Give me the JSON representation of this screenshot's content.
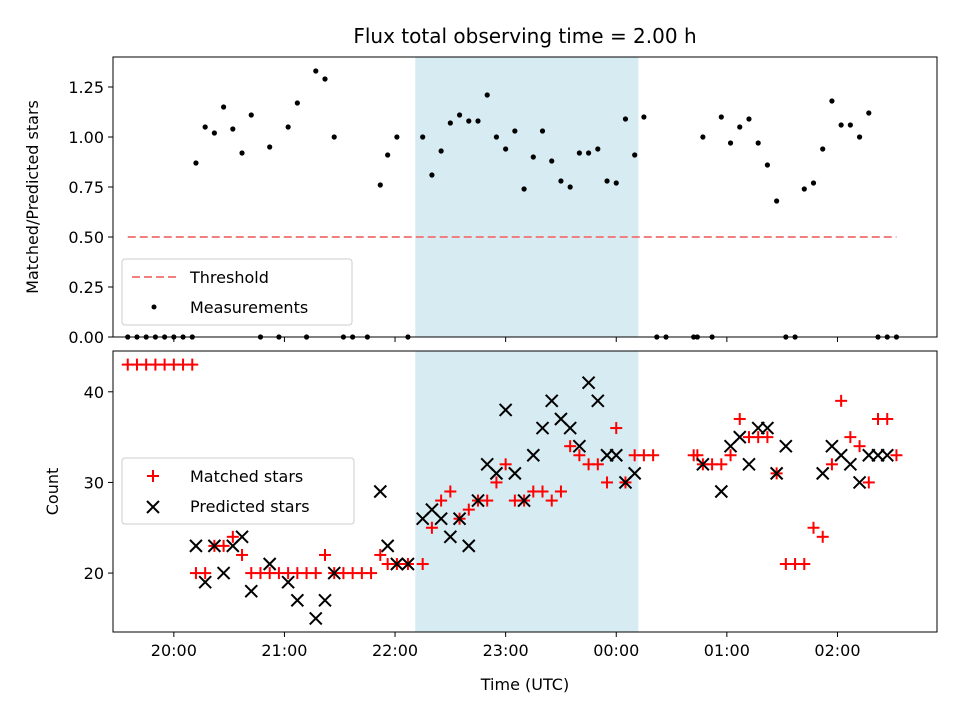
{
  "chart_data": [
    {
      "type": "scatter",
      "title": "Flux total observing time = 2.00 h",
      "xlabel": "",
      "ylabel": "Matched/Predicted stars",
      "xlim": [
        "19:27",
        "02:54"
      ],
      "ylim": [
        0,
        1.4
      ],
      "yticks": [
        "0.00",
        "0.25",
        "0.50",
        "0.75",
        "1.00",
        "1.25"
      ],
      "shaded_region": [
        "22:11",
        "00:12"
      ],
      "shade_color": "#add8e6",
      "legend": {
        "position": "lower-left",
        "entries": [
          "Threshold",
          "Measurements"
        ]
      },
      "threshold": {
        "name": "Threshold",
        "value": 0.5,
        "x_range": [
          "19:35",
          "02:32"
        ],
        "color": "#f08080",
        "style": "dashed"
      },
      "measurements": {
        "name": "Measurements",
        "color": "#000000",
        "x": [
          "19:35",
          "19:40",
          "19:45",
          "19:50",
          "19:55",
          "20:00",
          "20:05",
          "20:10",
          "20:12",
          "20:17",
          "20:22",
          "20:27",
          "20:32",
          "20:37",
          "20:42",
          "20:47",
          "20:52",
          "20:57",
          "21:02",
          "21:07",
          "21:12",
          "21:17",
          "21:22",
          "21:27",
          "21:32",
          "21:37",
          "21:45",
          "21:52",
          "21:56",
          "22:01",
          "22:07",
          "22:15",
          "22:20",
          "22:25",
          "22:30",
          "22:35",
          "22:40",
          "22:45",
          "22:50",
          "22:55",
          "23:00",
          "23:05",
          "23:10",
          "23:15",
          "23:20",
          "23:25",
          "23:30",
          "23:35",
          "23:40",
          "23:45",
          "23:50",
          "23:55",
          "00:00",
          "00:05",
          "00:10",
          "00:15",
          "00:22",
          "00:27",
          "00:42",
          "00:44",
          "00:47",
          "00:52",
          "00:57",
          "01:02",
          "01:07",
          "01:12",
          "01:17",
          "01:22",
          "01:27",
          "01:32",
          "01:37",
          "01:42",
          "01:47",
          "01:52",
          "01:57",
          "02:02",
          "02:07",
          "02:12",
          "02:17",
          "02:22",
          "02:27",
          "02:32"
        ],
        "y": [
          0,
          0,
          0,
          0,
          0,
          0,
          0,
          0,
          0.87,
          1.05,
          1.02,
          1.15,
          1.04,
          0.92,
          1.11,
          0,
          0.95,
          0,
          1.05,
          1.17,
          0,
          1.33,
          1.29,
          1.0,
          0,
          0,
          0,
          0.76,
          0.91,
          1.0,
          0,
          1.0,
          0.81,
          0.93,
          1.07,
          1.11,
          1.08,
          1.08,
          1.21,
          1.0,
          0.94,
          1.03,
          0.74,
          0.9,
          1.03,
          0.88,
          0.78,
          0.75,
          0.92,
          0.92,
          0.94,
          0.78,
          0.77,
          1.09,
          0.91,
          1.1,
          0,
          0,
          0,
          0,
          1.0,
          0,
          1.1,
          0.97,
          1.05,
          1.09,
          0.97,
          0.86,
          0.68,
          0,
          0,
          0.74,
          0.77,
          0.94,
          1.18,
          1.06,
          1.06,
          1.0,
          1.12,
          0,
          0,
          0
        ]
      }
    },
    {
      "type": "scatter",
      "title": "",
      "xlabel": "Time (UTC)",
      "ylabel": "Count",
      "xlim": [
        "19:27",
        "02:54"
      ],
      "ylim": [
        13.5,
        44.5
      ],
      "yticks": [
        "20",
        "30",
        "40"
      ],
      "xticks": [
        "20:00",
        "21:00",
        "22:00",
        "23:00",
        "00:00",
        "01:00",
        "02:00"
      ],
      "shaded_region": [
        "22:11",
        "00:12"
      ],
      "shade_color": "#add8e6",
      "legend": {
        "position": "center-left",
        "entries": [
          "Matched stars",
          "Predicted stars"
        ]
      },
      "series": [
        {
          "name": "Matched stars",
          "marker": "+",
          "color": "#ff0000",
          "x": [
            "19:35",
            "19:40",
            "19:45",
            "19:50",
            "19:55",
            "20:00",
            "20:05",
            "20:10",
            "20:12",
            "20:17",
            "20:22",
            "20:27",
            "20:32",
            "20:37",
            "20:42",
            "20:47",
            "20:52",
            "20:57",
            "21:02",
            "21:07",
            "21:12",
            "21:17",
            "21:22",
            "21:27",
            "21:32",
            "21:37",
            "21:42",
            "21:47",
            "21:52",
            "21:56",
            "22:01",
            "22:07",
            "22:15",
            "22:20",
            "22:25",
            "22:30",
            "22:35",
            "22:40",
            "22:45",
            "22:50",
            "22:55",
            "23:00",
            "23:05",
            "23:10",
            "23:15",
            "23:20",
            "23:25",
            "23:30",
            "23:35",
            "23:40",
            "23:45",
            "23:50",
            "23:55",
            "00:00",
            "00:05",
            "00:10",
            "00:15",
            "00:20",
            "00:42",
            "00:44",
            "00:47",
            "00:52",
            "00:57",
            "01:02",
            "01:07",
            "01:12",
            "01:17",
            "01:22",
            "01:27",
            "01:32",
            "01:37",
            "01:42",
            "01:47",
            "01:52",
            "01:57",
            "02:02",
            "02:07",
            "02:12",
            "02:17",
            "02:22",
            "02:27",
            "02:32"
          ],
          "y": [
            43,
            43,
            43,
            43,
            43,
            43,
            43,
            43,
            20,
            20,
            23,
            23,
            24,
            22,
            20,
            20,
            20,
            20,
            20,
            20,
            20,
            20,
            22,
            20,
            20,
            20,
            20,
            20,
            22,
            21,
            21,
            21,
            21,
            25,
            28,
            29,
            26,
            27,
            28,
            28,
            30,
            32,
            28,
            28,
            29,
            29,
            28,
            29,
            34,
            33,
            32,
            32,
            30,
            36,
            30,
            33,
            33,
            33,
            33,
            33,
            32,
            32,
            32,
            33,
            37,
            35,
            35,
            35,
            31,
            21,
            21,
            21,
            25,
            24,
            32,
            39,
            35,
            34,
            30,
            37,
            37,
            33
          ]
        },
        {
          "name": "Predicted stars",
          "marker": "x",
          "color": "#000000",
          "x": [
            "20:12",
            "20:17",
            "20:22",
            "20:27",
            "20:32",
            "20:37",
            "20:42",
            "20:52",
            "21:02",
            "21:07",
            "21:17",
            "21:22",
            "21:27",
            "21:52",
            "21:56",
            "22:01",
            "22:07",
            "22:15",
            "22:20",
            "22:25",
            "22:30",
            "22:35",
            "22:40",
            "22:45",
            "22:50",
            "22:55",
            "23:00",
            "23:05",
            "23:10",
            "23:15",
            "23:20",
            "23:25",
            "23:30",
            "23:35",
            "23:40",
            "23:45",
            "23:50",
            "23:55",
            "00:00",
            "00:05",
            "00:10",
            "00:47",
            "00:57",
            "01:02",
            "01:07",
            "01:12",
            "01:17",
            "01:22",
            "01:27",
            "01:32",
            "01:52",
            "01:57",
            "02:02",
            "02:07",
            "02:12",
            "02:17",
            "02:22",
            "02:27"
          ],
          "y": [
            23,
            19,
            23,
            20,
            23,
            24,
            18,
            21,
            19,
            17,
            15,
            17,
            20,
            29,
            23,
            21,
            21,
            26,
            27,
            26,
            24,
            26,
            23,
            28,
            32,
            31,
            38,
            31,
            28,
            33,
            36,
            39,
            37,
            36,
            34,
            41,
            39,
            33,
            33,
            30,
            31,
            32,
            29,
            34,
            35,
            32,
            36,
            36,
            31,
            34,
            31,
            34,
            33,
            32,
            30,
            33,
            33,
            33
          ]
        }
      ]
    }
  ]
}
